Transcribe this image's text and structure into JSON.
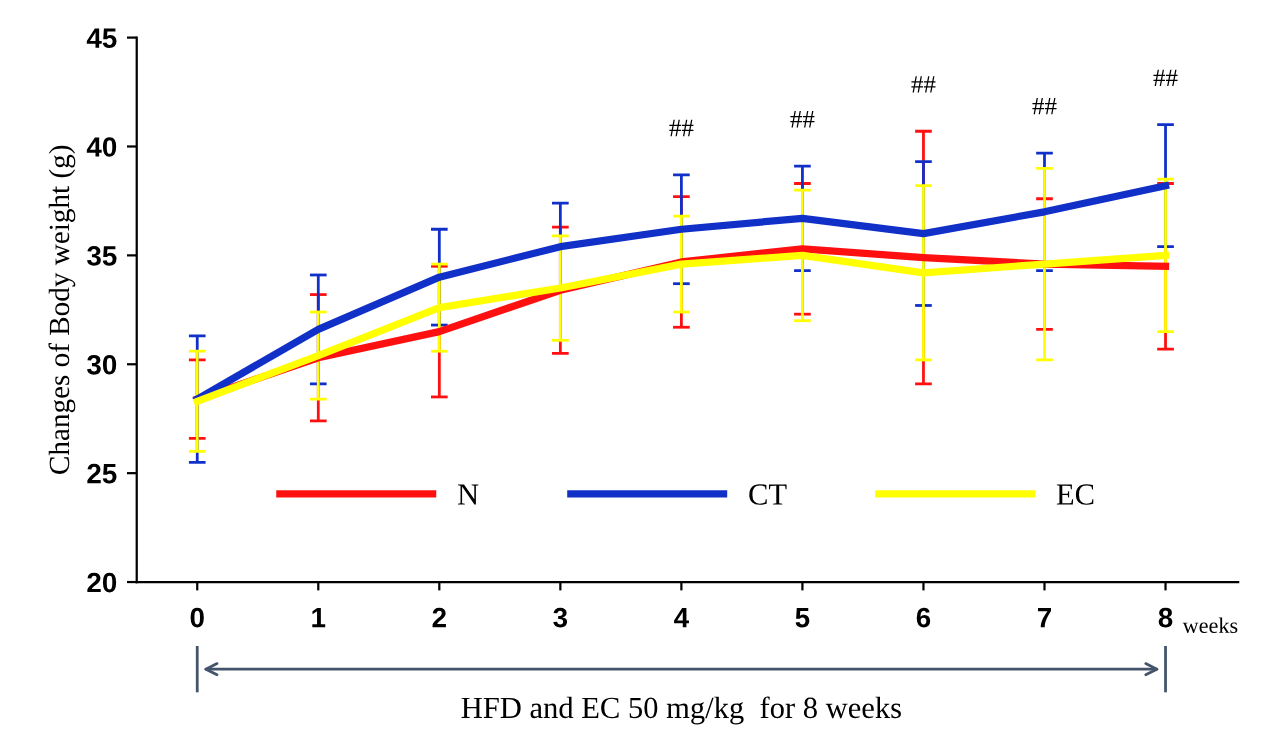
{
  "chart_data": {
    "type": "line",
    "ylabel": "Changes of Body weight (g)",
    "xlabel": "weeks",
    "x": [
      0,
      1,
      2,
      3,
      4,
      5,
      6,
      7,
      8
    ],
    "series": [
      {
        "name": "N",
        "color": "#ff1010",
        "values": [
          28.4,
          30.3,
          31.5,
          33.4,
          34.7,
          35.3,
          34.9,
          34.6,
          34.5
        ],
        "errors": [
          1.8,
          2.9,
          3.0,
          2.9,
          3.0,
          3.0,
          5.8,
          3.0,
          3.8
        ]
      },
      {
        "name": "CT",
        "color": "#1030c8",
        "values": [
          28.4,
          31.6,
          34.0,
          35.4,
          36.2,
          36.7,
          36.0,
          37.0,
          38.2
        ],
        "errors": [
          2.9,
          2.5,
          2.2,
          2.0,
          2.5,
          2.4,
          3.3,
          2.7,
          2.8
        ]
      },
      {
        "name": "EC",
        "color": "#ffff00",
        "values": [
          28.3,
          30.4,
          32.6,
          33.5,
          34.6,
          35.0,
          34.2,
          34.6,
          35.0
        ],
        "errors": [
          2.3,
          2.0,
          2.0,
          2.4,
          2.2,
          3.0,
          4.0,
          4.4,
          3.5
        ]
      }
    ],
    "annotations": [
      "##",
      "##",
      "##",
      "##",
      "##",
      "HFD and EC 50 mg/kg  for 8 weeks"
    ],
    "xlim": [
      -0.5,
      8.6
    ],
    "ylim": [
      20,
      45
    ],
    "xticks": [
      0,
      1,
      2,
      3,
      4,
      5,
      6,
      7,
      8
    ],
    "yticks": [
      20,
      25,
      30,
      35,
      40,
      45
    ],
    "legend": "bottom",
    "grid": false,
    "marker": "none",
    "line_style": "solid"
  }
}
